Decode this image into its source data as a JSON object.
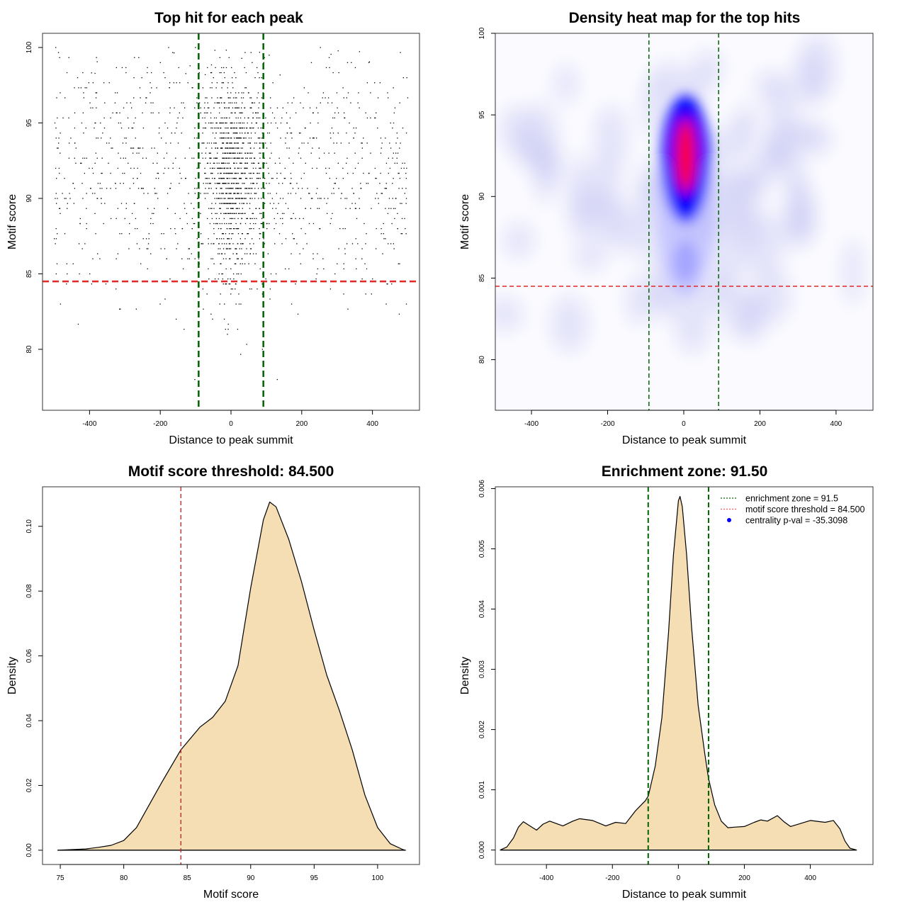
{
  "chart_data": [
    {
      "type": "scatter",
      "title": "Top hit for each peak",
      "xlabel": "Distance to peak summit",
      "ylabel": "Motif score",
      "xlim": [
        -533,
        533
      ],
      "ylim": [
        75.96,
        100.94
      ],
      "xticks": [
        -400,
        -200,
        0,
        200,
        400
      ],
      "yticks": [
        80,
        85,
        90,
        95,
        100
      ],
      "vlines": {
        "values": [
          -91.5,
          91.5
        ],
        "color": "#006400",
        "style": "dashed"
      },
      "hline": {
        "value": 84.5,
        "color": "#e32626",
        "style": "dashed"
      },
      "points_summary": {
        "n_background": 1100,
        "n_central": 1000,
        "central_sd": 45,
        "score_mean": 91.5,
        "score_sd": 4
      },
      "grid": false
    },
    {
      "type": "heatmap",
      "title": "Density heat map for the top hits",
      "xlabel": "Distance to peak summit",
      "ylabel": "Motif score",
      "xlim": [
        -495,
        497
      ],
      "ylim": [
        76.9,
        100
      ],
      "xticks": [
        -400,
        -200,
        0,
        200,
        400
      ],
      "yticks": [
        80,
        85,
        90,
        95,
        100
      ],
      "colors": [
        "#ffffff",
        "#0000ff",
        "#ff0000"
      ],
      "hotspot": {
        "x": 5,
        "y": 92.5
      },
      "vlines": {
        "values": [
          -91.5,
          91.5
        ],
        "color": "#006400"
      },
      "hline": {
        "value": 84.5,
        "color": "#e32626"
      }
    },
    {
      "type": "area",
      "title": "Motif score threshold: 84.500",
      "xlabel": "Motif score",
      "ylabel": "Density",
      "xlim": [
        73.6,
        103.3
      ],
      "ylim": [
        -0.0044,
        0.1122
      ],
      "xticks": [
        75,
        80,
        85,
        90,
        95,
        100
      ],
      "yticks": [
        "0.00",
        "0.02",
        "0.04",
        "0.06",
        "0.08",
        "0.10"
      ],
      "fill": "#f5deb3",
      "x": [
        74.8,
        77,
        78,
        79,
        80,
        81,
        82,
        83,
        84.5,
        86,
        87,
        88,
        89,
        90,
        91,
        91.5,
        92,
        93,
        94,
        95,
        96,
        97,
        98,
        99,
        100,
        101,
        102,
        102.2
      ],
      "y": [
        0,
        0.0004,
        0.0009,
        0.0015,
        0.003,
        0.007,
        0.014,
        0.021,
        0.031,
        0.038,
        0.041,
        0.046,
        0.057,
        0.081,
        0.102,
        0.1075,
        0.106,
        0.096,
        0.083,
        0.068,
        0.054,
        0.043,
        0.031,
        0.017,
        0.007,
        0.002,
        0.0002,
        0
      ],
      "vline": {
        "value": 84.5,
        "color": "#b22222",
        "style": "dashed"
      }
    },
    {
      "type": "area",
      "title": "Enrichment zone: 91.50",
      "xlabel": "Distance to peak summit",
      "ylabel": "Density",
      "xlim": [
        -555,
        590
      ],
      "ylim": [
        -0.00024,
        0.00603
      ],
      "xticks": [
        -400,
        -200,
        0,
        200,
        400
      ],
      "yticks": [
        "0.000",
        "0.001",
        "0.002",
        "0.003",
        "0.004",
        "0.005",
        "0.006"
      ],
      "fill": "#f5deb3",
      "x": [
        -540,
        -520,
        -500,
        -485,
        -470,
        -450,
        -430,
        -410,
        -390,
        -370,
        -350,
        -320,
        -300,
        -260,
        -220,
        -190,
        -160,
        -130,
        -100,
        -91,
        -70,
        -50,
        -30,
        -15,
        0,
        5,
        12,
        25,
        40,
        60,
        80,
        91,
        110,
        130,
        150,
        170,
        200,
        230,
        250,
        270,
        300,
        320,
        340,
        370,
        400,
        430,
        445,
        470,
        490,
        505,
        520,
        540
      ],
      "y": [
        0,
        5e-05,
        0.0002,
        0.00038,
        0.00047,
        0.0004,
        0.00033,
        0.00043,
        0.00048,
        0.00044,
        0.0004,
        0.00048,
        0.00052,
        0.00049,
        0.0004,
        0.00046,
        0.00044,
        0.00065,
        0.00082,
        0.0009,
        0.0014,
        0.0022,
        0.0036,
        0.0049,
        0.0058,
        0.00587,
        0.0057,
        0.0049,
        0.0037,
        0.0024,
        0.0016,
        0.0012,
        0.00075,
        0.00048,
        0.00037,
        0.00038,
        0.00039,
        0.00046,
        0.0005,
        0.00048,
        0.00057,
        0.00047,
        0.00039,
        0.00044,
        0.00049,
        0.00047,
        0.00046,
        0.00049,
        0.00035,
        0.00015,
        3e-05,
        0
      ],
      "vlines": {
        "values": [
          -91.5,
          91.5
        ],
        "color": "#006400",
        "style": "dashed"
      },
      "legend": {
        "position": "top-right",
        "entries": [
          {
            "label": "enrichment zone = 91.5",
            "color": "#006400",
            "marker": "dotted-line"
          },
          {
            "label": "motif score threshold = 84.500",
            "color": "#ff5555",
            "marker": "dotted-line"
          },
          {
            "label": "centrality p-val = -35.3098",
            "color": "#0000ff",
            "marker": "dot"
          }
        ]
      }
    }
  ]
}
